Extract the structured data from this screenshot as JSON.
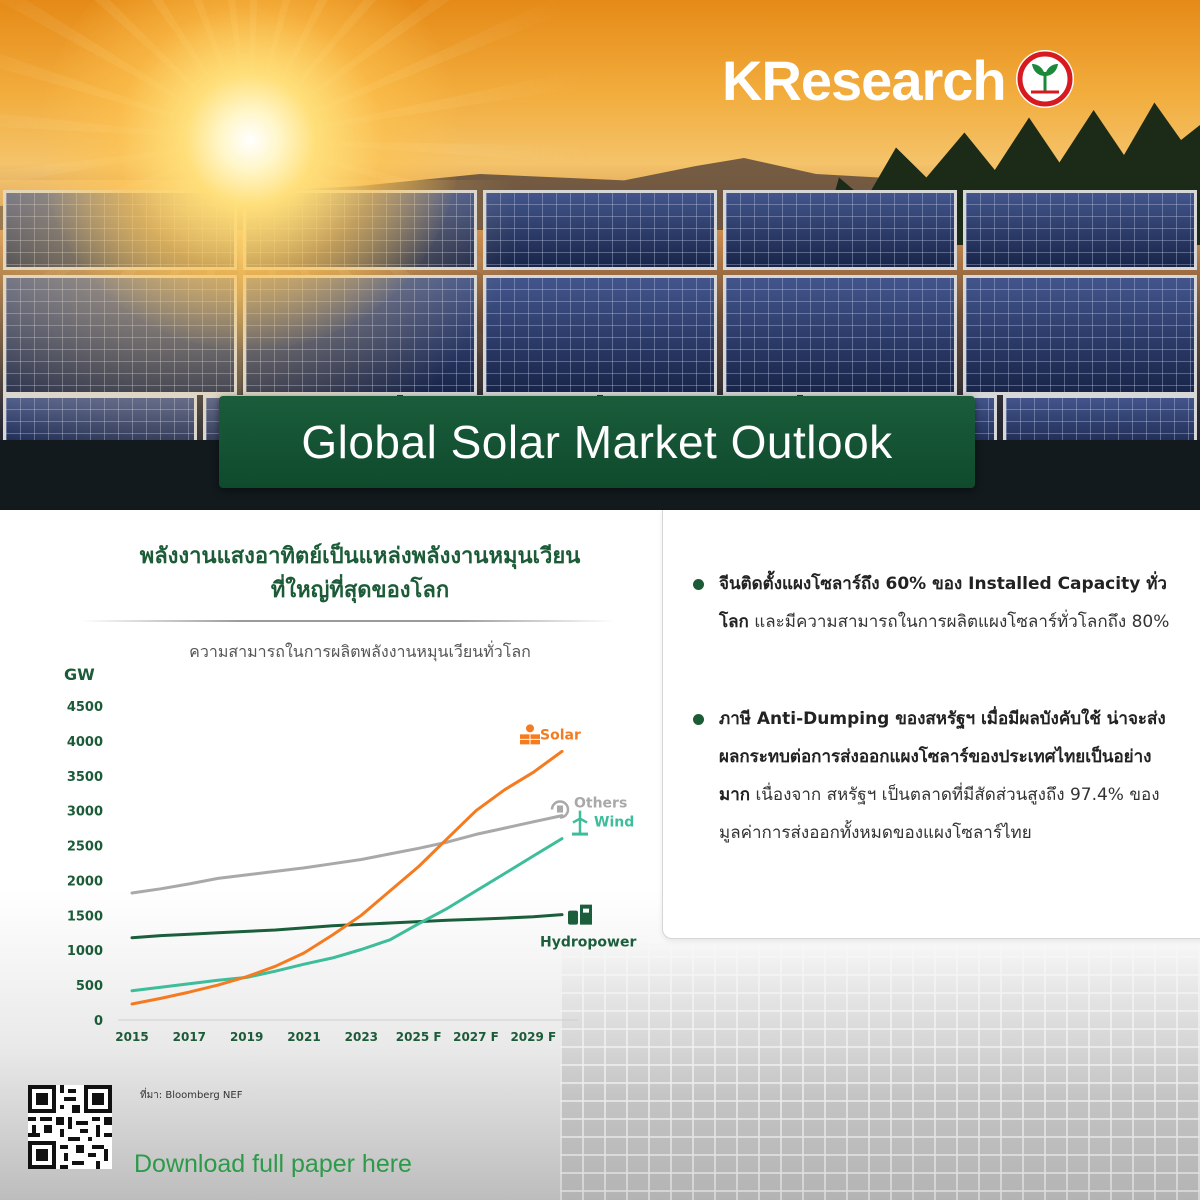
{
  "brand": {
    "logo_text": "KResearch"
  },
  "header": {
    "title": "Global Solar Market Outlook"
  },
  "chart_section": {
    "heading_line1": "พลังงานแสงอาทิตย์เป็นแหล่งพลังงานหมุนเวียน",
    "heading_line2": "ที่ใหญ่ที่สุดของโลก"
  },
  "chart_data": {
    "type": "line",
    "title": "ความสามารถในการผลิตพลังงานหมุนเวียนทั่วโลก",
    "ylabel": "GW",
    "xlabel": "",
    "ylim": [
      0,
      4500
    ],
    "yticks": [
      0,
      500,
      1000,
      1500,
      2000,
      2500,
      3000,
      3500,
      4000,
      4500
    ],
    "x": [
      2015,
      2016,
      2017,
      2018,
      2019,
      2020,
      2021,
      2022,
      2023,
      2024,
      2025,
      2026,
      2027,
      2028,
      2029,
      2030
    ],
    "xtick_labels": [
      "2015",
      "2017",
      "2019",
      "2021",
      "2023",
      "2025 F",
      "2027 F",
      "2029 F"
    ],
    "xtick_values": [
      2015,
      2017,
      2019,
      2021,
      2023,
      2025,
      2027,
      2029
    ],
    "grid": false,
    "legend": "labels at line ends",
    "series": [
      {
        "name": "Solar",
        "color": "#f47b20",
        "icon": "solar-panel-icon",
        "values": [
          230,
          310,
          400,
          500,
          620,
          770,
          960,
          1220,
          1500,
          1850,
          2200,
          2600,
          3000,
          3300,
          3550,
          3850
        ]
      },
      {
        "name": "Others",
        "color": "#a9a9a9",
        "icon": "recycle-plug-icon",
        "values": [
          1820,
          1880,
          1950,
          2030,
          2080,
          2130,
          2180,
          2240,
          2300,
          2380,
          2460,
          2550,
          2660,
          2750,
          2840,
          2930
        ]
      },
      {
        "name": "Wind",
        "color": "#3dbd9a",
        "icon": "wind-turbine-icon",
        "values": [
          420,
          470,
          520,
          570,
          610,
          700,
          800,
          890,
          1010,
          1150,
          1380,
          1600,
          1850,
          2100,
          2350,
          2600
        ]
      },
      {
        "name": "Hydropower",
        "color": "#1b5e3b",
        "icon": "hydro-plant-icon",
        "values": [
          1180,
          1210,
          1230,
          1250,
          1270,
          1290,
          1320,
          1350,
          1370,
          1390,
          1410,
          1430,
          1445,
          1460,
          1480,
          1510
        ]
      }
    ]
  },
  "bullets": [
    {
      "bold": "จีนติดตั้งแผงโซลาร์ถึง 60% ของ Installed Capacity ทั่วโลก",
      "text": " และมีความสามารถในการผลิตแผงโซลาร์ทั่วโลกถึง 80%"
    },
    {
      "bold": "ภาษี Anti-Dumping ของสหรัฐฯ เมื่อมีผลบังคับใช้ น่าจะส่งผลกระทบต่อการส่งออกแผงโซลาร์ของประเทศไทยเป็นอย่างมาก",
      "text": " เนื่องจาก สหรัฐฯ เป็นตลาดที่มีสัดส่วนสูงถึง 97.4% ของมูลค่าการส่งออกทั้งหมดของแผงโซลาร์ไทย"
    }
  ],
  "footer": {
    "source": "ที่มา: Bloomberg NEF",
    "download_label": "Download full paper here"
  },
  "colors": {
    "brand_green": "#1c5b37",
    "download_green": "#2d9a4a"
  }
}
